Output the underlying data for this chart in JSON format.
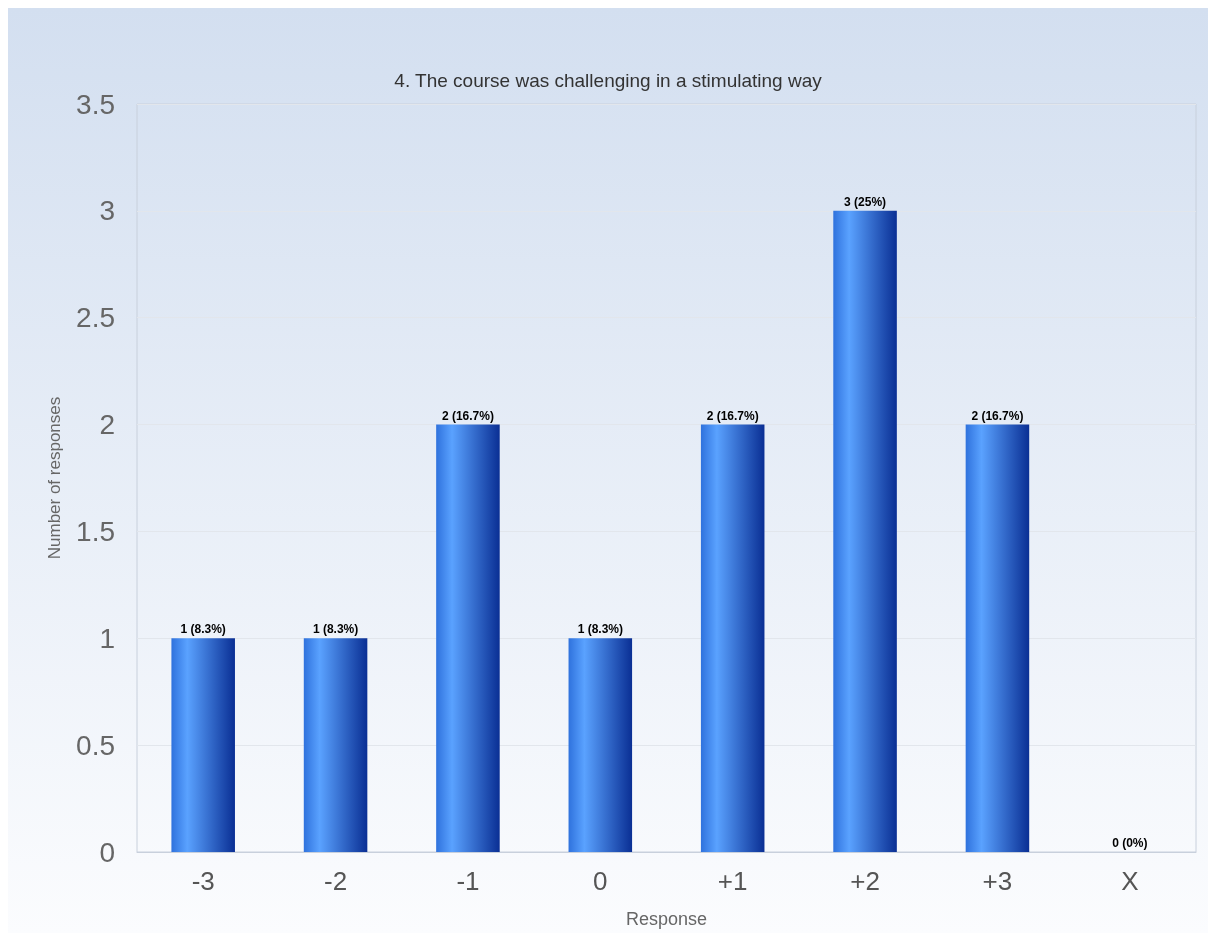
{
  "chart_data": {
    "type": "bar",
    "title": "4. The course was challenging in a stimulating way",
    "xlabel": "Response",
    "ylabel": "Number of responses",
    "categories": [
      "-3",
      "-2",
      "-1",
      "0",
      "+1",
      "+2",
      "+3",
      "X"
    ],
    "values": [
      1,
      1,
      2,
      1,
      2,
      3,
      2,
      0
    ],
    "value_labels": [
      "1 (8.3%)",
      "1 (8.3%)",
      "2 (16.7%)",
      "1 (8.3%)",
      "2 (16.7%)",
      "3 (25%)",
      "2 (16.7%)",
      "0 (0%)"
    ],
    "color": "#2f72dd",
    "ylim": [
      0,
      3.5
    ],
    "yticks": [
      0,
      0.5,
      1,
      1.5,
      2,
      2.5,
      3,
      3.5
    ],
    "grid": "y"
  }
}
